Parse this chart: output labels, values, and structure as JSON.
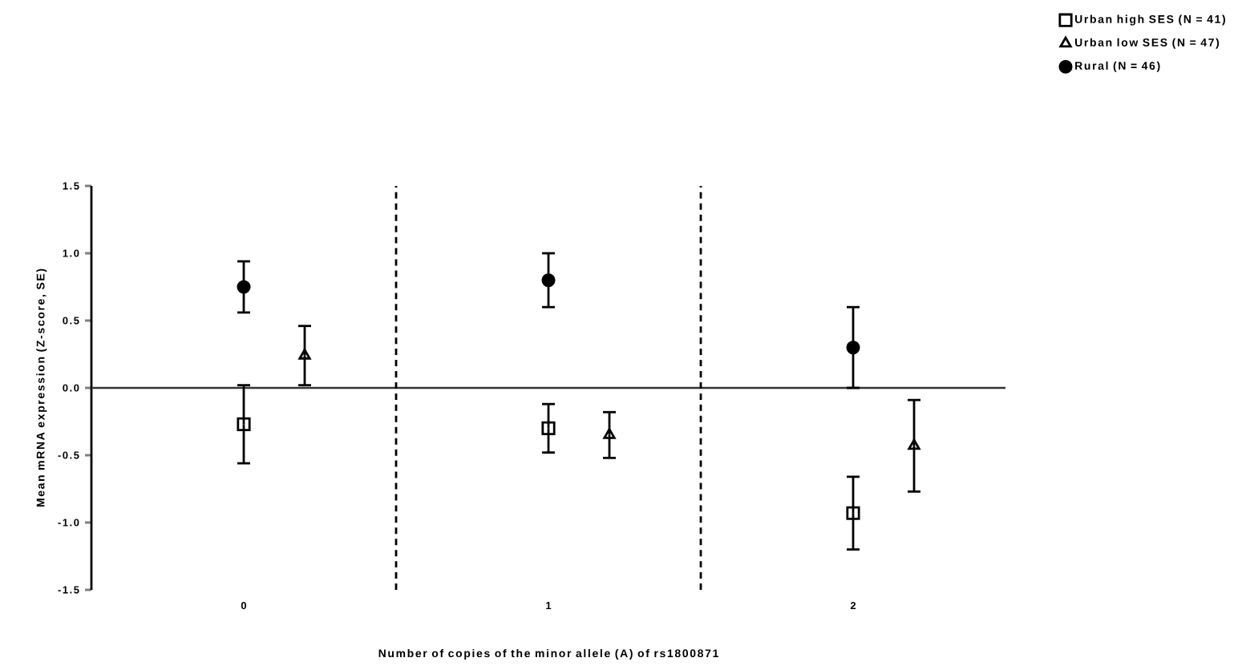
{
  "chart_data": {
    "type": "scatter",
    "xlabel": "Number of copies of the minor allele (A) of rs1800871",
    "ylabel": "Mean mRNA expression (Z-score, SE)",
    "xlim": [
      -0.5,
      2.5
    ],
    "xticks": [
      0,
      1,
      2
    ],
    "ylim": [
      -1.5,
      1.5
    ],
    "yticks": [
      {
        "value": -1.5,
        "label": "-1.5"
      },
      {
        "value": -1.0,
        "label": "-1.0"
      },
      {
        "value": -0.5,
        "label": "-0.5"
      },
      {
        "value": 0,
        "label": "0.0"
      },
      {
        "value": 0.5,
        "label": "0.5"
      },
      {
        "value": 1.0,
        "label": "1.0"
      },
      {
        "value": 1.5,
        "label": "1.5"
      }
    ],
    "legend": "top right",
    "grid": false,
    "series": [
      {
        "name": "Urban high SES (N = 41)",
        "color": "#000000",
        "marker": "square",
        "x": [
          0,
          1,
          2
        ],
        "values": [
          -0.27,
          -0.3,
          -0.93
        ],
        "errors": [
          0.29,
          0.18,
          0.27
        ]
      },
      {
        "name": "Urban low SES (N = 47)",
        "color": "#000000",
        "marker": "triangle",
        "x": [
          0.2,
          1.2,
          2.2
        ],
        "values": [
          0.24,
          -0.35,
          -0.43
        ],
        "errors": [
          0.22,
          0.17,
          0.34
        ]
      },
      {
        "name": "Rural (N = 46)",
        "color": "#000000",
        "marker": "circle",
        "x": [
          0,
          1,
          2
        ],
        "values": [
          0.75,
          0.8,
          0.3
        ],
        "errors": [
          0.19,
          0.2,
          0.3
        ]
      }
    ],
    "ref_lines": [
      {
        "axis": "y",
        "value": 0,
        "color": "#333333",
        "line_style": "solid"
      },
      {
        "axis": "x",
        "value": 0.5,
        "color": "#000000",
        "line_style": "dashed"
      },
      {
        "axis": "x",
        "value": 1.5,
        "color": "#000000",
        "line_style": "dashed"
      }
    ]
  }
}
